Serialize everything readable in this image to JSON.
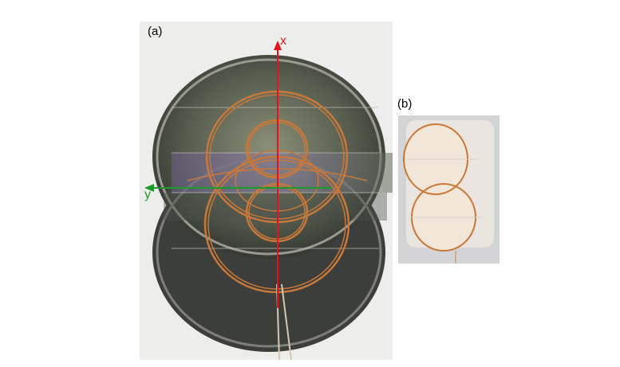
{
  "panels": {
    "a": {
      "label": "(a)"
    },
    "b": {
      "label": "(b)"
    }
  },
  "axes": {
    "x": {
      "label": "x",
      "color": "#e8131a"
    },
    "y": {
      "label": "y",
      "color": "#1e9a2d"
    }
  },
  "colors": {
    "coil": "#c9783a",
    "pad": "#f1e6d7",
    "plate": "#4b4f46"
  }
}
